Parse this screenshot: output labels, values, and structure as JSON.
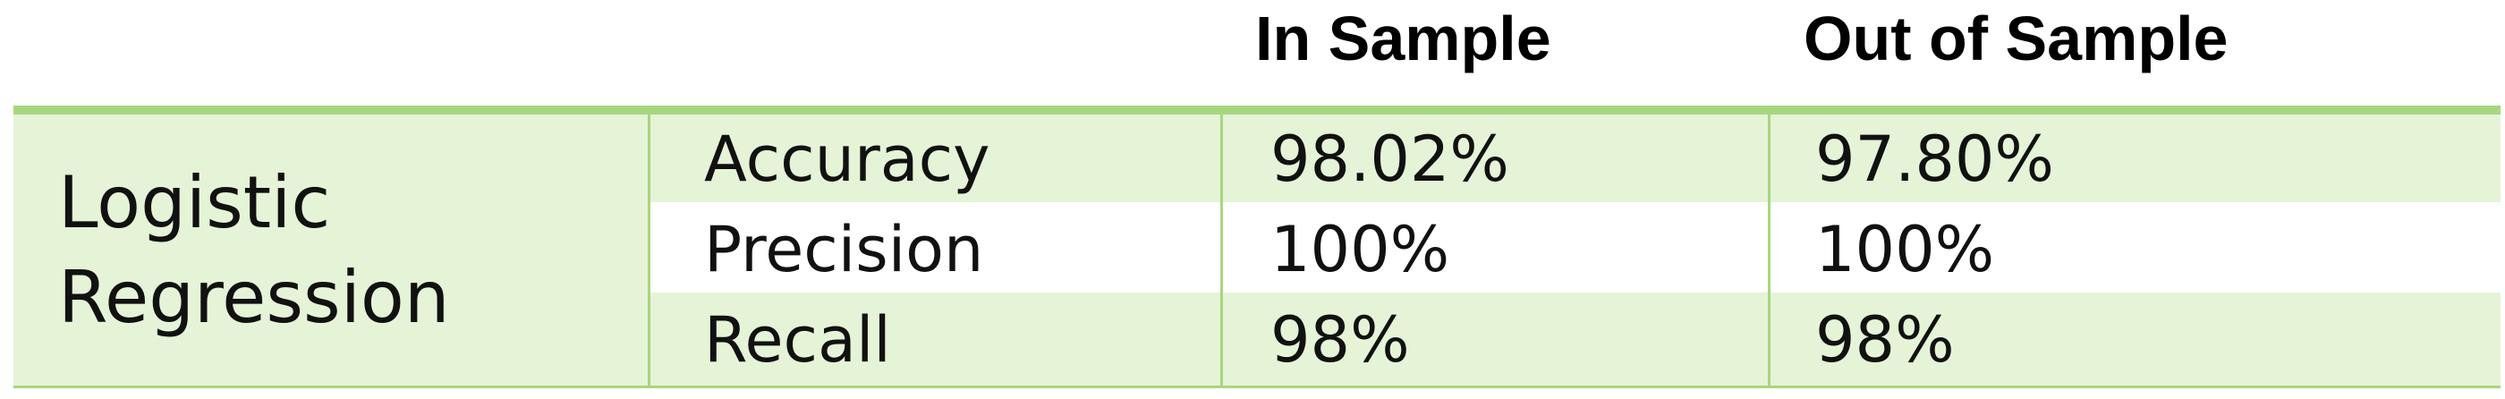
{
  "table": {
    "columns": [
      "In Sample",
      "Out of Sample"
    ],
    "model": {
      "line1": "Logistic",
      "line2": "Regression"
    },
    "rows": [
      {
        "metric": "Accuracy",
        "in_sample": "98.02%",
        "out_of_sample": "97.80%"
      },
      {
        "metric": "Precision",
        "in_sample": "100%",
        "out_of_sample": "100%"
      },
      {
        "metric": "Recall",
        "in_sample": "98%",
        "out_of_sample": "98%"
      }
    ],
    "colors": {
      "accent": "#a8d67e",
      "band": "#e5f3d7"
    }
  }
}
